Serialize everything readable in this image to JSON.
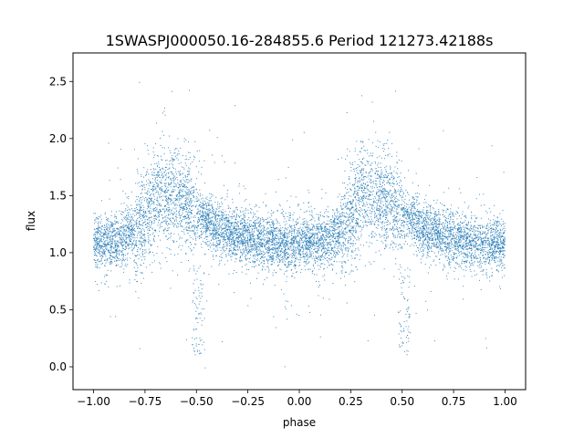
{
  "chart_data": {
    "type": "scatter",
    "title": "1SWASPJ000050.16-284855.6 Period 121273.42188s",
    "xlabel": "phase",
    "ylabel": "flux",
    "xlim": [
      -1.1,
      1.1
    ],
    "ylim": [
      -0.2,
      2.75
    ],
    "xticks": [
      -1.0,
      -0.75,
      -0.5,
      -0.25,
      0.0,
      0.25,
      0.5,
      0.75,
      1.0
    ],
    "xtick_labels": [
      "−1.00",
      "−0.75",
      "−0.50",
      "−0.25",
      "0.00",
      "0.25",
      "0.50",
      "0.75",
      "1.00"
    ],
    "yticks": [
      0.0,
      0.5,
      1.0,
      1.5,
      2.0,
      2.5
    ],
    "ytick_labels": [
      "0.0",
      "0.5",
      "1.0",
      "1.5",
      "2.0",
      "2.5"
    ],
    "grid": false,
    "marker_color": "#1f77b4",
    "light_curve_profile": {
      "phase": [
        0.0,
        0.1,
        0.2,
        0.25,
        0.3,
        0.35,
        0.4,
        0.45,
        0.5,
        0.55,
        0.6,
        0.65,
        0.7,
        0.8,
        0.9,
        1.0
      ],
      "flux": [
        1.08,
        1.1,
        1.18,
        1.32,
        1.5,
        1.52,
        1.48,
        1.42,
        1.35,
        1.28,
        1.22,
        1.18,
        1.15,
        1.1,
        1.08,
        1.08
      ]
    },
    "dips": [
      {
        "phase": -0.49,
        "min_flux": 0.1
      },
      {
        "phase": 0.51,
        "min_flux": 0.1
      }
    ]
  }
}
